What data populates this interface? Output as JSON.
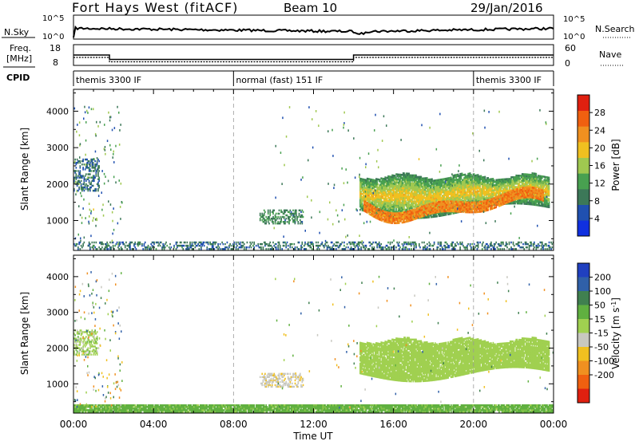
{
  "header": {
    "station": "Fort Hays West (fitACF)",
    "beam": "Beam 10",
    "date": "29/Jan/2016"
  },
  "top_panels": {
    "nsky_label": "N.Sky",
    "nsky_ticks": [
      "10^5",
      "10^0"
    ],
    "nsearch_label": "N.Search",
    "freq_label_1": "Freq.",
    "freq_label_2": "[MHz]",
    "freq_ticks": [
      "18",
      "8"
    ],
    "nave_label": "Nave",
    "nave_ticks": [
      "60",
      "0"
    ],
    "cpid_label": "CPID",
    "cpid_modes": [
      {
        "label": "themis 3300 IF",
        "start_h": 0,
        "end_h": 8
      },
      {
        "label": "normal (fast) 151 IF",
        "start_h": 8,
        "end_h": 20
      },
      {
        "label": "themis 3300 IF",
        "start_h": 20,
        "end_h": 24
      }
    ],
    "freq_steps": [
      {
        "start_h": 0,
        "end_h": 1.8,
        "value": 13
      },
      {
        "start_h": 1.8,
        "end_h": 14,
        "value": 10.5
      },
      {
        "start_h": 14,
        "end_h": 24,
        "value": 13
      }
    ]
  },
  "axes": {
    "y_label": "Slant Range [km]",
    "y_ticks": [
      "1000",
      "2000",
      "3000",
      "4000"
    ],
    "x_label": "Time UT",
    "x_ticks": [
      "00:00",
      "04:00",
      "08:00",
      "12:00",
      "16:00",
      "20:00",
      "00:00"
    ]
  },
  "power_colorbar": {
    "label": "Power [dB]",
    "ticks": [
      "4",
      "8",
      "12",
      "16",
      "20",
      "24",
      "28"
    ],
    "colors": [
      "#1030e0",
      "#2050b0",
      "#3c7858",
      "#48a050",
      "#a0c850",
      "#f0c020",
      "#f09020",
      "#f06010",
      "#e02010"
    ]
  },
  "velocity_colorbar": {
    "label": "Velocity [m s",
    "label_sup": "-1",
    "label_end": "]",
    "ticks": [
      "200",
      "100",
      "50",
      "15",
      "-15",
      "-50",
      "-100",
      "-200"
    ],
    "colors": [
      "#2040c0",
      "#3060a8",
      "#408050",
      "#60b040",
      "#a0d050",
      "#c8c8c0",
      "#f0c020",
      "#f09020",
      "#f06010",
      "#e02010"
    ]
  },
  "chart_data": [
    {
      "type": "heatmap",
      "title": "",
      "xlabel": "Time UT",
      "ylabel": "Slant Range [km]",
      "xlim": [
        0,
        24
      ],
      "ylim": [
        180,
        4600
      ],
      "value_label": "Power [dB]",
      "regions": [
        {
          "t0": 0,
          "t1": 1.3,
          "r0": 1800,
          "r1": 2700,
          "value": 8
        },
        {
          "t0": 9.3,
          "t1": 11.5,
          "r0": 900,
          "r1": 1300,
          "value": 10
        },
        {
          "t0": 14.3,
          "t1": 23.8,
          "r0": 1200,
          "r1": 2200,
          "value": 12
        },
        {
          "t0": 14.5,
          "t1": 23.5,
          "r0": 1000,
          "r1": 1800,
          "value": 24
        },
        {
          "t0": 0,
          "t1": 24,
          "r0": 200,
          "r1": 400,
          "value": 8
        }
      ]
    },
    {
      "type": "heatmap",
      "title": "",
      "xlabel": "Time UT",
      "ylabel": "Slant Range [km]",
      "xlim": [
        0,
        24
      ],
      "ylim": [
        180,
        4600
      ],
      "value_label": "Velocity [m s-1]",
      "regions": [
        {
          "t0": 0,
          "t1": 1.2,
          "r0": 1800,
          "r1": 2500,
          "value": 0
        },
        {
          "t0": 9.3,
          "t1": 11.5,
          "r0": 900,
          "r1": 1300,
          "value": -40
        },
        {
          "t0": 14.3,
          "t1": 23.8,
          "r0": 1200,
          "r1": 2200,
          "value": 0
        },
        {
          "t0": 0,
          "t1": 24,
          "r0": 200,
          "r1": 400,
          "value": 30
        }
      ]
    }
  ]
}
